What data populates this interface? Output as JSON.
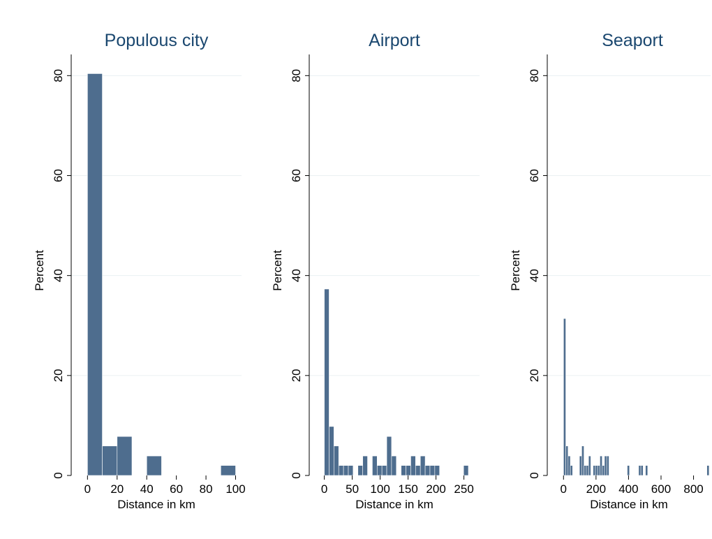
{
  "colors": {
    "bar": "#4e6d8e",
    "title": "#1a476f",
    "grid": "#eaf0f2",
    "background": "#ffffff"
  },
  "chart_data": [
    {
      "type": "bar",
      "title": "Populous city",
      "xlabel": "Distance in km",
      "ylabel": "Percent",
      "xlim": [
        -11,
        104
      ],
      "ylim": [
        0,
        82
      ],
      "xticks": [
        0,
        20,
        40,
        60,
        80,
        100
      ],
      "yticks": [
        0,
        20,
        40,
        60,
        80
      ],
      "grid": true,
      "bins": [
        {
          "x0": 0,
          "x1": 10,
          "y": 80.4
        },
        {
          "x0": 10,
          "x1": 20,
          "y": 5.9
        },
        {
          "x0": 20,
          "x1": 30,
          "y": 7.8
        },
        {
          "x0": 40,
          "x1": 50,
          "y": 3.9
        },
        {
          "x0": 90,
          "x1": 100,
          "y": 2.0
        }
      ]
    },
    {
      "type": "bar",
      "title": "Airport",
      "xlabel": "Distance in km",
      "ylabel": "Percent",
      "xlim": [
        -27,
        278
      ],
      "ylim": [
        0,
        82
      ],
      "xticks": [
        0,
        50,
        100,
        150,
        200,
        250
      ],
      "yticks": [
        0,
        20,
        40,
        60,
        80
      ],
      "grid": true,
      "bins": [
        {
          "x0": 0,
          "x1": 8.6,
          "y": 37.3
        },
        {
          "x0": 8.6,
          "x1": 17.2,
          "y": 9.8
        },
        {
          "x0": 17.2,
          "x1": 25.8,
          "y": 5.9
        },
        {
          "x0": 25.8,
          "x1": 34.4,
          "y": 2.0
        },
        {
          "x0": 34.4,
          "x1": 43.0,
          "y": 2.0
        },
        {
          "x0": 43.0,
          "x1": 51.6,
          "y": 2.0
        },
        {
          "x0": 60.2,
          "x1": 68.8,
          "y": 2.0
        },
        {
          "x0": 68.8,
          "x1": 77.4,
          "y": 3.9
        },
        {
          "x0": 86.0,
          "x1": 94.6,
          "y": 3.9
        },
        {
          "x0": 94.6,
          "x1": 103.2,
          "y": 2.0
        },
        {
          "x0": 103.2,
          "x1": 111.8,
          "y": 2.0
        },
        {
          "x0": 111.8,
          "x1": 120.4,
          "y": 7.8
        },
        {
          "x0": 120.4,
          "x1": 129.0,
          "y": 3.9
        },
        {
          "x0": 137.6,
          "x1": 146.2,
          "y": 2.0
        },
        {
          "x0": 146.2,
          "x1": 154.8,
          "y": 2.0
        },
        {
          "x0": 154.8,
          "x1": 163.4,
          "y": 3.9
        },
        {
          "x0": 163.4,
          "x1": 172.0,
          "y": 2.0
        },
        {
          "x0": 172.0,
          "x1": 180.6,
          "y": 3.9
        },
        {
          "x0": 180.6,
          "x1": 189.2,
          "y": 2.0
        },
        {
          "x0": 189.2,
          "x1": 197.8,
          "y": 2.0
        },
        {
          "x0": 197.8,
          "x1": 206.4,
          "y": 2.0
        },
        {
          "x0": 249.4,
          "x1": 258.0,
          "y": 2.0
        }
      ]
    },
    {
      "type": "bar",
      "title": "Seaport",
      "xlabel": "Distance in km",
      "ylabel": "Percent",
      "xlim": [
        -100,
        905
      ],
      "ylim": [
        0,
        82
      ],
      "xticks": [
        0,
        200,
        400,
        600,
        800
      ],
      "yticks": [
        0,
        20,
        40,
        60,
        80
      ],
      "grid": true,
      "bins": [
        {
          "x0": 0,
          "x1": 14,
          "y": 31.4
        },
        {
          "x0": 14,
          "x1": 28,
          "y": 5.9
        },
        {
          "x0": 28,
          "x1": 42,
          "y": 3.9
        },
        {
          "x0": 42,
          "x1": 56,
          "y": 2.0
        },
        {
          "x0": 98,
          "x1": 112,
          "y": 3.9
        },
        {
          "x0": 112,
          "x1": 126,
          "y": 5.9
        },
        {
          "x0": 126,
          "x1": 140,
          "y": 2.0
        },
        {
          "x0": 140,
          "x1": 154,
          "y": 2.0
        },
        {
          "x0": 154,
          "x1": 168,
          "y": 3.9
        },
        {
          "x0": 182,
          "x1": 196,
          "y": 2.0
        },
        {
          "x0": 196,
          "x1": 210,
          "y": 2.0
        },
        {
          "x0": 210,
          "x1": 224,
          "y": 2.0
        },
        {
          "x0": 224,
          "x1": 238,
          "y": 3.9
        },
        {
          "x0": 238,
          "x1": 252,
          "y": 2.0
        },
        {
          "x0": 252,
          "x1": 266,
          "y": 3.9
        },
        {
          "x0": 266,
          "x1": 280,
          "y": 3.9
        },
        {
          "x0": 392,
          "x1": 406,
          "y": 2.0
        },
        {
          "x0": 462,
          "x1": 476,
          "y": 2.0
        },
        {
          "x0": 476,
          "x1": 490,
          "y": 2.0
        },
        {
          "x0": 504,
          "x1": 518,
          "y": 2.0
        },
        {
          "x0": 882,
          "x1": 896,
          "y": 2.0
        }
      ]
    }
  ]
}
